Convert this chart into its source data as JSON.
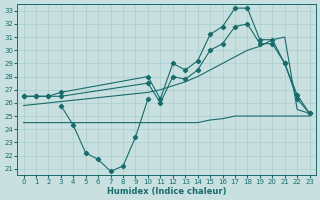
{
  "bg_color": "#c8e0e0",
  "grid_color": "#aacece",
  "line_color": "#1a6b6b",
  "xlabel": "Humidex (Indice chaleur)",
  "xlim": [
    -0.5,
    23.5
  ],
  "ylim": [
    20.5,
    33.5
  ],
  "yticks": [
    21,
    22,
    23,
    24,
    25,
    26,
    27,
    28,
    29,
    30,
    31,
    32,
    33
  ],
  "xticks": [
    0,
    1,
    2,
    3,
    4,
    5,
    6,
    7,
    8,
    9,
    10,
    11,
    12,
    13,
    14,
    15,
    16,
    17,
    18,
    19,
    20,
    21,
    22,
    23
  ],
  "line_max_x": [
    0,
    1,
    2,
    3,
    10,
    11,
    12,
    13,
    14,
    15,
    16,
    17,
    18,
    19,
    20,
    21,
    22,
    23
  ],
  "line_max_y": [
    26.5,
    26.5,
    26.5,
    26.8,
    28.0,
    26.3,
    29.0,
    28.5,
    29.2,
    31.2,
    31.8,
    33.2,
    33.2,
    30.8,
    30.8,
    29.0,
    26.6,
    25.2
  ],
  "line_sec_x": [
    0,
    1,
    2,
    3,
    10,
    11,
    12,
    13,
    14,
    15,
    16,
    17,
    18,
    19,
    20,
    21,
    22,
    23
  ],
  "line_sec_y": [
    26.5,
    26.5,
    26.5,
    26.5,
    27.5,
    26.0,
    28.0,
    27.8,
    28.5,
    30.0,
    30.5,
    31.8,
    32.0,
    30.5,
    30.5,
    29.0,
    26.3,
    25.2
  ],
  "line_avg_x": [
    0,
    1,
    2,
    3,
    4,
    5,
    6,
    7,
    8,
    9,
    10,
    11,
    12,
    13,
    14,
    15,
    16,
    17,
    18,
    19,
    20,
    21,
    22,
    23
  ],
  "line_avg_y": [
    25.8,
    25.9,
    26.0,
    26.1,
    26.2,
    26.3,
    26.4,
    26.5,
    26.6,
    26.7,
    26.8,
    27.0,
    27.3,
    27.6,
    28.0,
    28.5,
    29.0,
    29.5,
    30.0,
    30.3,
    30.8,
    31.0,
    25.5,
    25.2
  ],
  "line_flat_x": [
    0,
    1,
    2,
    3,
    4,
    5,
    6,
    7,
    8,
    9,
    10,
    11,
    12,
    13,
    14,
    15,
    16,
    17,
    18,
    19,
    20,
    21,
    22,
    23
  ],
  "line_flat_y": [
    24.5,
    24.5,
    24.5,
    24.5,
    24.5,
    24.5,
    24.5,
    24.5,
    24.5,
    24.5,
    24.5,
    24.5,
    24.5,
    24.5,
    24.5,
    24.7,
    24.8,
    25.0,
    25.0,
    25.0,
    25.0,
    25.0,
    25.0,
    25.0
  ],
  "line_min_x": [
    3,
    4,
    5,
    6,
    7,
    8,
    9,
    10
  ],
  "line_min_y": [
    25.8,
    24.3,
    22.2,
    21.7,
    20.8,
    21.2,
    23.4,
    26.3
  ]
}
